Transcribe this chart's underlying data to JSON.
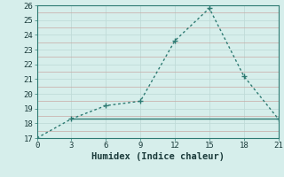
{
  "line1_x": [
    0,
    3,
    6,
    9,
    12,
    15,
    18,
    21
  ],
  "line1_y": [
    17.0,
    18.3,
    19.2,
    19.5,
    23.6,
    25.8,
    21.2,
    18.3
  ],
  "line2_x": [
    3,
    21
  ],
  "line2_y": [
    18.3,
    18.3
  ],
  "color": "#2d7a72",
  "bg_color": "#d6eeeb",
  "grid_color": "#c0dbd8",
  "grid_color_major": "#c8a8a0",
  "xlabel": "Humidex (Indice chaleur)",
  "xlim": [
    0,
    21
  ],
  "ylim": [
    17,
    26
  ],
  "xticks": [
    0,
    3,
    6,
    9,
    12,
    15,
    18,
    21
  ],
  "yticks": [
    17,
    18,
    19,
    20,
    21,
    22,
    23,
    24,
    25,
    26
  ],
  "markersize": 3,
  "linewidth": 1.0,
  "xlabel_fontsize": 7.5,
  "tick_fontsize": 6.5
}
